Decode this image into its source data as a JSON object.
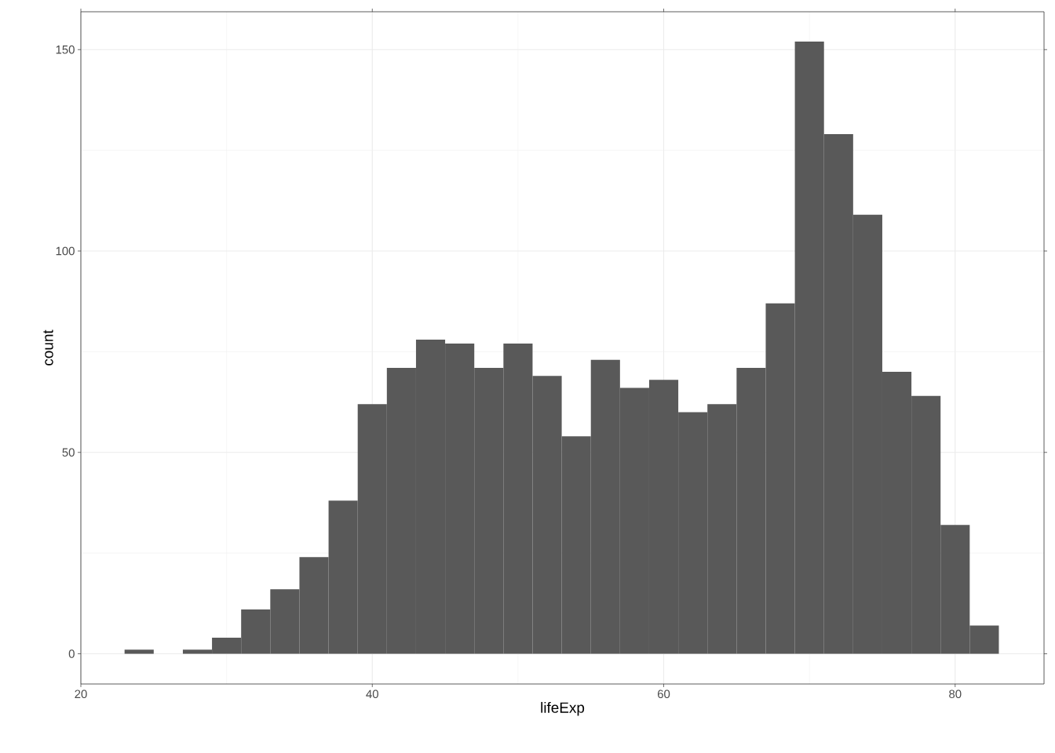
{
  "chart_data": {
    "type": "histogram",
    "xlabel": "lifeExp",
    "ylabel": "count",
    "color": "#595959",
    "bins": [
      23,
      25,
      27,
      29,
      31,
      33,
      35,
      37,
      39,
      41,
      43,
      45,
      47,
      49,
      51,
      53,
      55,
      57,
      59,
      61,
      63,
      65,
      67,
      69,
      71,
      73,
      75,
      77,
      79,
      81,
      83
    ],
    "values": [
      1,
      0,
      1,
      4,
      11,
      16,
      24,
      38,
      62,
      71,
      78,
      77,
      71,
      77,
      69,
      54,
      73,
      66,
      68,
      60,
      62,
      71,
      87,
      152,
      129,
      109,
      70,
      64,
      32,
      7
    ],
    "xlim": [
      20,
      86.1
    ],
    "ylim": [
      -7.5,
      159.4
    ],
    "xticks": [
      20,
      40,
      60,
      80
    ],
    "yticks": [
      0,
      50,
      100,
      150
    ],
    "grid": true
  }
}
